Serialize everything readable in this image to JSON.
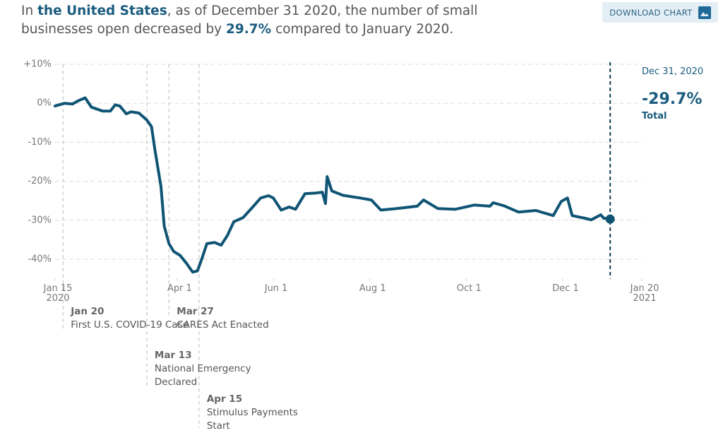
{
  "header": {
    "summary": [
      "In ",
      "the United States",
      ", as of December 31 2020, the number of small businesses open decreased by ",
      "29.7%",
      " compared to January 2020."
    ],
    "button": "DOWNLOAD CHART"
  },
  "chart_data": {
    "type": "line",
    "color": "#0f5474",
    "x": [
      "2020-01-15",
      "2020-01-21",
      "2020-01-26",
      "2020-01-30",
      "2020-02-03",
      "2020-02-07",
      "2020-02-14",
      "2020-02-19",
      "2020-02-22",
      "2020-02-25",
      "2020-02-29",
      "2020-03-03",
      "2020-03-08",
      "2020-03-13",
      "2020-03-16",
      "2020-03-18",
      "2020-03-22",
      "2020-03-24",
      "2020-03-27",
      "2020-03-30",
      "2020-04-03",
      "2020-04-07",
      "2020-04-11",
      "2020-04-14",
      "2020-04-17",
      "2020-04-20",
      "2020-04-25",
      "2020-04-29",
      "2020-05-03",
      "2020-05-07",
      "2020-05-13",
      "2020-05-19",
      "2020-05-24",
      "2020-05-29",
      "2020-06-01",
      "2020-06-06",
      "2020-06-11",
      "2020-06-15",
      "2020-06-21",
      "2020-06-28",
      "2020-07-02",
      "2020-07-04",
      "2020-07-05",
      "2020-07-08",
      "2020-07-15",
      "2020-07-26",
      "2020-08-02",
      "2020-08-08",
      "2020-08-18",
      "2020-08-31",
      "2020-09-04",
      "2020-09-13",
      "2020-09-24",
      "2020-10-06",
      "2020-10-16",
      "2020-10-18",
      "2020-10-25",
      "2020-11-03",
      "2020-11-14",
      "2020-11-25",
      "2020-11-30",
      "2020-12-04",
      "2020-12-07",
      "2020-12-15",
      "2020-12-19",
      "2020-12-25",
      "2020-12-27",
      "2020-12-31"
    ],
    "values": [
      -0.7,
      0,
      -0.2,
      0.7,
      1.4,
      -1,
      -2,
      -2,
      -0.4,
      -0.7,
      -2.7,
      -2.2,
      -2.5,
      -4.3,
      -6,
      -11.6,
      -21.5,
      -31.5,
      -36,
      -38,
      -39,
      -41,
      -43.3,
      -43,
      -39.7,
      -36,
      -35.7,
      -36.4,
      -33.9,
      -30.4,
      -29.3,
      -26.6,
      -24.3,
      -23.7,
      -24.3,
      -27.4,
      -26.6,
      -27.2,
      -23.2,
      -23,
      -22.8,
      -25.7,
      -18.8,
      -22.5,
      -23.6,
      -24.3,
      -24.8,
      -27.4,
      -27,
      -26.4,
      -24.8,
      -27,
      -27.2,
      -26.1,
      -26.4,
      -25.5,
      -26.3,
      -27.9,
      -27.5,
      -28.8,
      -25.2,
      -24.3,
      -28.8,
      -29.5,
      -29.9,
      -28.6,
      -29.5,
      -29.7
    ],
    "xlim": [
      "2020-01-15",
      "2021-01-20"
    ],
    "xticks": [
      {
        "value": "2020-01-15",
        "label": "Jan 15\n2020"
      },
      {
        "value": "2020-04-01",
        "label": "Apr 1"
      },
      {
        "value": "2020-06-01",
        "label": "Jun 1"
      },
      {
        "value": "2020-08-01",
        "label": "Aug 1"
      },
      {
        "value": "2020-10-01",
        "label": "Oct 1"
      },
      {
        "value": "2020-12-01",
        "label": "Dec 1"
      },
      {
        "value": "2021-01-20",
        "label": "Jan 20\n2021"
      }
    ],
    "ylim": [
      -45,
      10
    ],
    "yticks": [
      {
        "value": 10,
        "label": "+10%"
      },
      {
        "value": 0,
        "label": "0%"
      },
      {
        "value": -10,
        "label": "-10%"
      },
      {
        "value": -20,
        "label": "-20%"
      },
      {
        "value": -30,
        "label": "-30%"
      },
      {
        "value": -40,
        "label": "-40%"
      }
    ],
    "grid": true,
    "events": [
      {
        "x": "2020-01-20",
        "date": "Jan 20",
        "text": "First U.S. COVID-19 Case"
      },
      {
        "x": "2020-03-13",
        "date": "Mar 13",
        "text": "National Emergency\nDeclared"
      },
      {
        "x": "2020-03-27",
        "date": "Mar 27",
        "text": "CARES Act Enacted"
      },
      {
        "x": "2020-04-15",
        "date": "Apr 15",
        "text": "Stimulus Payments\nStart"
      }
    ],
    "callout": {
      "date": "Dec 31, 2020",
      "value_label": "-29.7%",
      "note": "Total"
    }
  }
}
